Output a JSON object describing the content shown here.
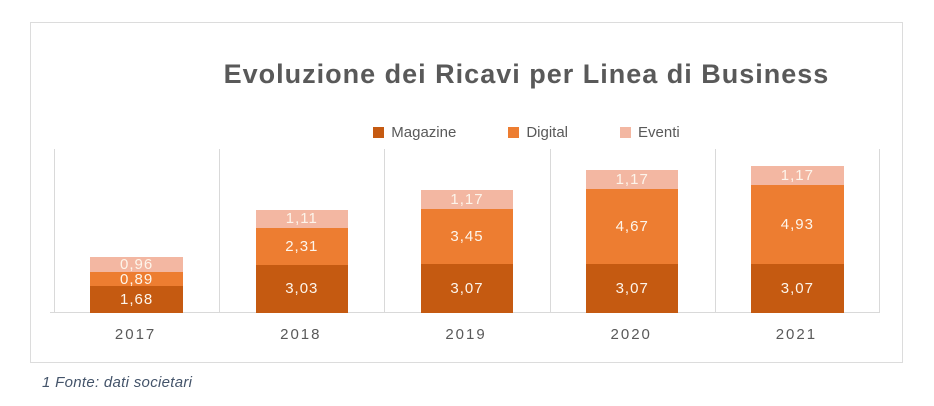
{
  "title": "Evoluzione dei Ricavi per Linea di Business",
  "footnote": "1 Fonte: dati societari",
  "legend": [
    "Magazine",
    "Digital",
    "Eventi"
  ],
  "colors": {
    "magazine": "#C55A11",
    "digital": "#ED7D31",
    "eventi": "#F3B7A2",
    "text": "#595959",
    "axis_grid": "#D9D9D9",
    "data_label": "#FDF5EB",
    "footnote_text": "#44546A"
  },
  "chart_data": {
    "type": "bar",
    "stacked": true,
    "title": "Evoluzione dei Ricavi per Linea di Business",
    "categories": [
      "2017",
      "2018",
      "2019",
      "2020",
      "2021"
    ],
    "series": [
      {
        "name": "Magazine",
        "color": "#C55A11",
        "values": [
          1.68,
          3.03,
          3.07,
          3.07,
          3.07
        ],
        "labels": [
          "1,68",
          "3,03",
          "3,07",
          "3,07",
          "3,07"
        ]
      },
      {
        "name": "Digital",
        "color": "#ED7D31",
        "values": [
          0.89,
          2.31,
          3.45,
          4.67,
          4.93
        ],
        "labels": [
          "0,89",
          "2,31",
          "3,45",
          "4,67",
          "4,93"
        ]
      },
      {
        "name": "Eventi",
        "color": "#F3B7A2",
        "values": [
          0.96,
          1.11,
          1.17,
          1.17,
          1.17
        ],
        "labels": [
          "0,96",
          "1,11",
          "1,17",
          "1,17",
          "1,17"
        ]
      }
    ],
    "xlabel": "",
    "ylabel": "",
    "ylim": [
      0,
      10.25
    ],
    "grid": "vertical category separators only",
    "legend_position": "top-center",
    "data_labels": "inside center, decimal comma format"
  }
}
